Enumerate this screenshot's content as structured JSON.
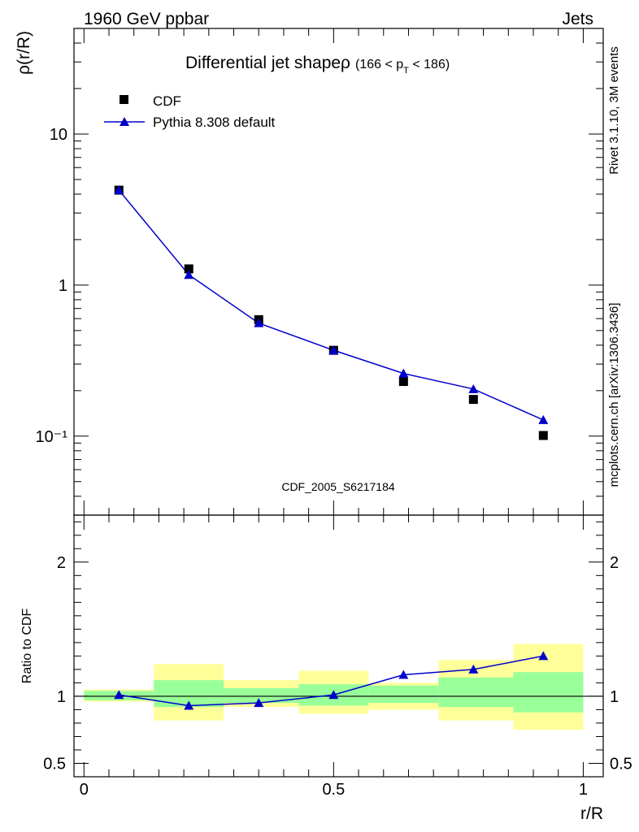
{
  "header": {
    "energy_label": "1960 GeV ppbar",
    "process_label": "Jets",
    "side_rivet": "Rivet 3.1.10,  3M events",
    "side_source": "mcplots.cern.ch [arXiv:1306.3436]"
  },
  "colors": {
    "mc_line": "#0000cc",
    "band_yellow": "#ffff99",
    "band_green": "#99ff99",
    "data_marker": "#000000",
    "watermark": "#999999"
  },
  "chart_data": [
    {
      "type": "line",
      "title": "Differential jet shapeρ",
      "title_suffix": "(166 < p",
      "title_sub": "T",
      "title_end": " < 186)",
      "ylabel": "ρ(r/R)",
      "xlabel": "r/R",
      "watermark": "CDF_2005_S6217184",
      "yscale": "log",
      "ylim": [
        0.03,
        50
      ],
      "xlim": [
        -0.02,
        1.04
      ],
      "y_tick_labels": [
        {
          "value": 10,
          "label": "10"
        },
        {
          "value": 1,
          "label": "1"
        },
        {
          "value": 0.1,
          "label": "10⁻¹"
        }
      ],
      "legend_position": "top-left",
      "x": [
        0.07,
        0.21,
        0.35,
        0.5,
        0.64,
        0.78,
        0.92
      ],
      "series": [
        {
          "name": "CDF",
          "marker": "square",
          "values": [
            4.25,
            1.28,
            0.59,
            0.37,
            0.23,
            0.175,
            0.101
          ]
        },
        {
          "name": "Pythia 8.308 default",
          "marker": "triangle",
          "values": [
            4.25,
            1.17,
            0.56,
            0.37,
            0.26,
            0.205,
            0.128
          ]
        }
      ]
    },
    {
      "type": "line",
      "ylabel": "Ratio to CDF",
      "ylim": [
        0.4,
        2.35
      ],
      "y_tick_labels": [
        {
          "value": 2,
          "label": "2"
        },
        {
          "value": 1,
          "label": "1"
        },
        {
          "value": 0.5,
          "label": "0.5"
        }
      ],
      "x_tick_labels": [
        {
          "value": 0,
          "label": "0"
        },
        {
          "value": 0.5,
          "label": "0.5"
        },
        {
          "value": 1,
          "label": "1"
        }
      ],
      "bins": [
        [
          0.0,
          0.14
        ],
        [
          0.14,
          0.28
        ],
        [
          0.28,
          0.43
        ],
        [
          0.43,
          0.57
        ],
        [
          0.57,
          0.71
        ],
        [
          0.71,
          0.86
        ],
        [
          0.86,
          1.0
        ]
      ],
      "band_yellow": [
        [
          0.96,
          1.05
        ],
        [
          0.82,
          1.24
        ],
        [
          0.92,
          1.12
        ],
        [
          0.87,
          1.19
        ],
        [
          0.9,
          1.1
        ],
        [
          0.82,
          1.27
        ],
        [
          0.75,
          1.39
        ]
      ],
      "band_green": [
        [
          0.97,
          1.04
        ],
        [
          0.92,
          1.12
        ],
        [
          0.95,
          1.06
        ],
        [
          0.93,
          1.09
        ],
        [
          0.95,
          1.08
        ],
        [
          0.92,
          1.14
        ],
        [
          0.88,
          1.18
        ]
      ],
      "series": [
        {
          "name": "Pythia 8.308 default",
          "marker": "triangle",
          "values": [
            1.01,
            0.93,
            0.95,
            1.01,
            1.16,
            1.2,
            1.3
          ]
        }
      ]
    }
  ]
}
